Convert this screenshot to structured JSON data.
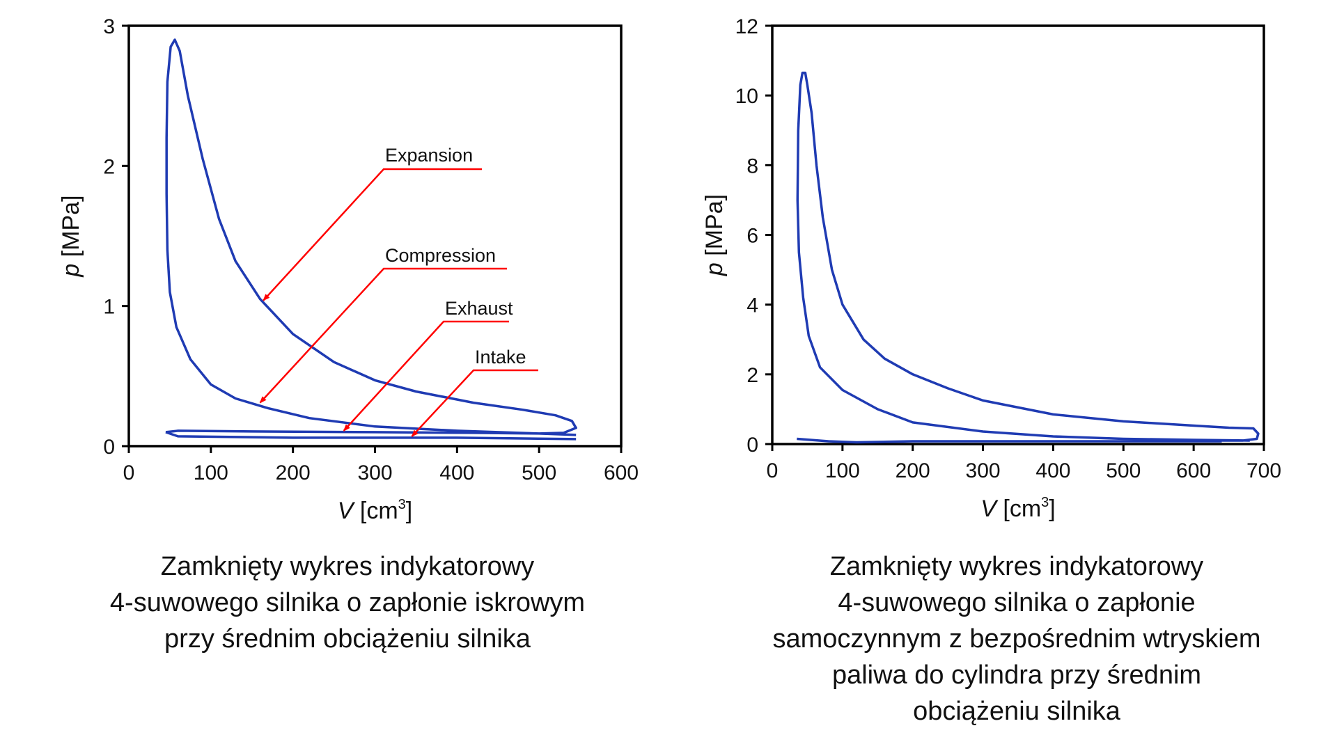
{
  "chart_data": [
    {
      "type": "line",
      "xlabel_italic": "V",
      "xlabel_unit": "[cm",
      "xlabel_sup": "3",
      "xlabel_close": "]",
      "ylabel_italic": "p",
      "ylabel_unit": "[MPa]",
      "xlim": [
        0,
        600
      ],
      "ylim": [
        0,
        3
      ],
      "xticks": [
        "0",
        "100",
        "200",
        "300",
        "400",
        "500",
        "600"
      ],
      "yticks": [
        "0",
        "1",
        "2",
        "3"
      ],
      "grid": false,
      "line_color": "#1f3bb3",
      "annotation_color": "#ff0000",
      "caption": [
        "Zamknięty wykres indykatorowy",
        "4-suwowego silnika o zapłonie iskrowym",
        "przy średnim obciążeniu silnika"
      ],
      "series": [
        {
          "points": [
            [
              45,
              0.1
            ],
            [
              60,
              0.11
            ],
            [
              150,
              0.105
            ],
            [
              300,
              0.1
            ],
            [
              420,
              0.095
            ],
            [
              500,
              0.09
            ],
            [
              530,
              0.095
            ],
            [
              545,
              0.13
            ],
            [
              540,
              0.18
            ],
            [
              520,
              0.22
            ],
            [
              480,
              0.26
            ],
            [
              420,
              0.31
            ],
            [
              350,
              0.39
            ],
            [
              300,
              0.47
            ],
            [
              250,
              0.6
            ],
            [
              200,
              0.8
            ],
            [
              160,
              1.05
            ],
            [
              130,
              1.32
            ],
            [
              110,
              1.62
            ],
            [
              90,
              2.05
            ],
            [
              72,
              2.5
            ],
            [
              62,
              2.82
            ],
            [
              56,
              2.9
            ],
            [
              51,
              2.85
            ],
            [
              47,
              2.6
            ],
            [
              46,
              2.2
            ],
            [
              46,
              1.8
            ],
            [
              47,
              1.4
            ],
            [
              50,
              1.1
            ],
            [
              58,
              0.85
            ],
            [
              75,
              0.62
            ],
            [
              100,
              0.44
            ],
            [
              130,
              0.34
            ],
            [
              170,
              0.27
            ],
            [
              220,
              0.2
            ],
            [
              300,
              0.14
            ],
            [
              400,
              0.11
            ],
            [
              500,
              0.09
            ],
            [
              545,
              0.08
            ]
          ],
          "intake": [
            [
              45,
              0.1
            ],
            [
              60,
              0.07
            ],
            [
              200,
              0.06
            ],
            [
              400,
              0.06
            ],
            [
              545,
              0.05
            ]
          ]
        }
      ],
      "annotations": [
        {
          "text": "Expansion",
          "target": [
            164,
            1.04
          ]
        },
        {
          "text": "Compression",
          "target": [
            160,
            0.31
          ]
        },
        {
          "text": "Exhaust",
          "target": [
            262,
            0.11
          ]
        },
        {
          "text": "Intake",
          "target": [
            345,
            0.07
          ]
        }
      ]
    },
    {
      "type": "line",
      "xlabel_italic": "V",
      "xlabel_unit": "[cm",
      "xlabel_sup": "3",
      "xlabel_close": "]",
      "ylabel_italic": "p",
      "ylabel_unit": "[MPa]",
      "xlim": [
        0,
        700
      ],
      "ylim": [
        0,
        12
      ],
      "xticks": [
        "0",
        "100",
        "200",
        "300",
        "400",
        "500",
        "600",
        "700"
      ],
      "yticks": [
        "0",
        "2",
        "4",
        "6",
        "8",
        "10",
        "12"
      ],
      "grid": false,
      "line_color": "#1f3bb3",
      "caption": [
        "Zamknięty wykres indykatorowy",
        "4-suwowego silnika o zapłonie",
        "samoczynnym z bezpośrednim wtryskiem",
        "paliwa do cylindra przy średnim",
        "obciążeniu silnika"
      ],
      "series": [
        {
          "points": [
            [
              640,
              0.1
            ],
            [
              670,
              0.1
            ],
            [
              690,
              0.15
            ],
            [
              692,
              0.3
            ],
            [
              685,
              0.45
            ],
            [
              650,
              0.47
            ],
            [
              600,
              0.53
            ],
            [
              500,
              0.65
            ],
            [
              400,
              0.85
            ],
            [
              300,
              1.25
            ],
            [
              250,
              1.6
            ],
            [
              200,
              2.0
            ],
            [
              160,
              2.45
            ],
            [
              130,
              3.0
            ],
            [
              100,
              4.0
            ],
            [
              85,
              5.0
            ],
            [
              72,
              6.5
            ],
            [
              63,
              8.0
            ],
            [
              56,
              9.5
            ],
            [
              50,
              10.3
            ],
            [
              47,
              10.65
            ],
            [
              43,
              10.65
            ],
            [
              40,
              10.3
            ],
            [
              37,
              9.0
            ],
            [
              36,
              7.0
            ],
            [
              38,
              5.5
            ],
            [
              44,
              4.2
            ],
            [
              52,
              3.1
            ],
            [
              68,
              2.2
            ],
            [
              100,
              1.55
            ],
            [
              150,
              1.0
            ],
            [
              200,
              0.62
            ],
            [
              300,
              0.36
            ],
            [
              400,
              0.22
            ],
            [
              500,
              0.15
            ],
            [
              600,
              0.12
            ],
            [
              680,
              0.1
            ]
          ],
          "intake": [
            [
              35,
              0.15
            ],
            [
              80,
              0.08
            ],
            [
              120,
              0.05
            ],
            [
              200,
              0.08
            ],
            [
              400,
              0.08
            ],
            [
              640,
              0.08
            ]
          ]
        }
      ]
    }
  ]
}
